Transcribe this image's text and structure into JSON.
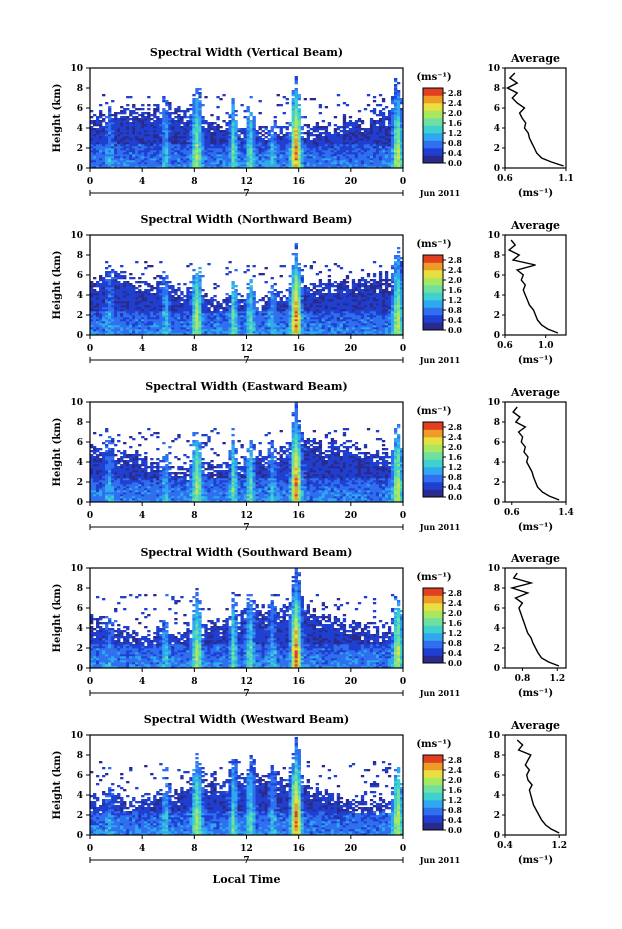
{
  "colors": {
    "background": "#ffffff",
    "colormap": [
      "#2a2a8c",
      "#1f3fd0",
      "#2f6ff0",
      "#2fa8f0",
      "#3fd0d0",
      "#6fe0a0",
      "#a8e860",
      "#e8e040",
      "#f09a28",
      "#e04020"
    ]
  },
  "chart_data": [
    {
      "type": "heatmap",
      "title": "Spectral Width (Vertical Beam)",
      "ylabel": "Height (km)",
      "xlabel": "",
      "ylim": [
        0,
        10
      ],
      "yticks": [
        "0",
        "2",
        "4",
        "6",
        "8",
        "10"
      ],
      "xlim": [
        0,
        24
      ],
      "xticks": [
        "0",
        "4",
        "8",
        "12",
        "16",
        "20",
        "0"
      ],
      "date_marker": "7",
      "date_label": "Jun 2011",
      "colorbar": {
        "unit": "(ms⁻¹)",
        "ticks": [
          "0.0",
          "0.4",
          "0.8",
          "1.2",
          "1.6",
          "2.0",
          "2.4",
          "2.8"
        ],
        "range": [
          0,
          3.0
        ]
      },
      "profile": {
        "title": "Average",
        "xticks": [
          "0.6",
          "1.1"
        ],
        "xlim": [
          0.6,
          1.1
        ],
        "xlabel": "(ms⁻¹)",
        "heights": [
          0.2,
          0.6,
          1.0,
          1.5,
          2.0,
          2.5,
          3.0,
          3.5,
          4.0,
          4.5,
          5.0,
          5.5,
          6.0,
          6.5,
          7.0,
          7.5,
          8.0,
          8.5,
          9.0,
          9.5
        ],
        "values": [
          1.08,
          0.98,
          0.9,
          0.86,
          0.84,
          0.82,
          0.8,
          0.79,
          0.76,
          0.77,
          0.74,
          0.72,
          0.76,
          0.7,
          0.66,
          0.7,
          0.62,
          0.7,
          0.64,
          0.68
        ]
      }
    },
    {
      "type": "heatmap",
      "title": "Spectral Width (Northward Beam)",
      "ylabel": "Height (km)",
      "xlabel": "",
      "ylim": [
        0,
        10
      ],
      "yticks": [
        "0",
        "2",
        "4",
        "6",
        "8",
        "10"
      ],
      "xlim": [
        0,
        24
      ],
      "xticks": [
        "0",
        "4",
        "8",
        "12",
        "16",
        "20",
        "0"
      ],
      "date_marker": "7",
      "date_label": "Jun 2011",
      "colorbar": {
        "unit": "(ms⁻¹)",
        "ticks": [
          "0.0",
          "0.4",
          "0.8",
          "1.2",
          "1.6",
          "2.0",
          "2.4",
          "2.8"
        ],
        "range": [
          0,
          3.0
        ]
      },
      "profile": {
        "title": "Average",
        "xticks": [
          "0.6",
          "1.0"
        ],
        "xlim": [
          0.6,
          1.2
        ],
        "xlabel": "(ms⁻¹)",
        "heights": [
          0.2,
          0.6,
          1.0,
          1.5,
          2.0,
          2.5,
          3.0,
          3.5,
          4.0,
          4.5,
          5.0,
          5.5,
          6.0,
          6.5,
          7.0,
          7.5,
          8.0,
          8.5,
          9.0,
          9.5
        ],
        "values": [
          1.12,
          1.02,
          0.96,
          0.92,
          0.9,
          0.88,
          0.84,
          0.82,
          0.8,
          0.78,
          0.8,
          0.76,
          0.78,
          0.72,
          0.9,
          0.68,
          0.74,
          0.64,
          0.7,
          0.66
        ]
      }
    },
    {
      "type": "heatmap",
      "title": "Spectral Width (Eastward Beam)",
      "ylabel": "Height (km)",
      "xlabel": "",
      "ylim": [
        0,
        10
      ],
      "yticks": [
        "0",
        "2",
        "4",
        "6",
        "8",
        "10"
      ],
      "xlim": [
        0,
        24
      ],
      "xticks": [
        "0",
        "4",
        "8",
        "12",
        "16",
        "20",
        "0"
      ],
      "date_marker": "7",
      "date_label": "Jun 2011",
      "colorbar": {
        "unit": "(ms⁻¹)",
        "ticks": [
          "0.0",
          "0.4",
          "0.8",
          "1.2",
          "1.6",
          "2.0",
          "2.4",
          "2.8"
        ],
        "range": [
          0,
          3.0
        ]
      },
      "profile": {
        "title": "Average",
        "xticks": [
          "0.6",
          "1.4"
        ],
        "xlim": [
          0.5,
          1.4
        ],
        "xlabel": "(ms⁻¹)",
        "heights": [
          0.2,
          0.6,
          1.0,
          1.5,
          2.0,
          2.5,
          3.0,
          3.5,
          4.0,
          4.5,
          5.0,
          5.5,
          6.0,
          6.5,
          7.0,
          7.5,
          8.0,
          8.5,
          9.0,
          9.5
        ],
        "values": [
          1.3,
          1.15,
          1.05,
          0.98,
          0.95,
          0.92,
          0.9,
          0.86,
          0.82,
          0.84,
          0.78,
          0.8,
          0.74,
          0.76,
          0.7,
          0.8,
          0.66,
          0.72,
          0.62,
          0.68
        ]
      }
    },
    {
      "type": "heatmap",
      "title": "Spectral Width (Southward Beam)",
      "ylabel": "Height (km)",
      "xlabel": "",
      "ylim": [
        0,
        10
      ],
      "yticks": [
        "0",
        "2",
        "4",
        "6",
        "8",
        "10"
      ],
      "xlim": [
        0,
        24
      ],
      "xticks": [
        "0",
        "4",
        "8",
        "12",
        "16",
        "20",
        "0"
      ],
      "date_marker": "7",
      "date_label": "Jun 2011",
      "colorbar": {
        "unit": "(ms⁻¹)",
        "ticks": [
          "0.0",
          "0.4",
          "0.8",
          "1.2",
          "1.6",
          "2.0",
          "2.4",
          "2.8"
        ],
        "range": [
          0,
          3.0
        ]
      },
      "profile": {
        "title": "Average",
        "xticks": [
          "0.8",
          "1.2"
        ],
        "xlim": [
          0.6,
          1.3
        ],
        "xlabel": "(ms⁻¹)",
        "heights": [
          0.2,
          0.6,
          1.0,
          1.5,
          2.0,
          2.5,
          3.0,
          3.5,
          4.0,
          4.5,
          5.0,
          5.5,
          6.0,
          6.5,
          7.0,
          7.5,
          8.0,
          8.5,
          9.0,
          9.5
        ],
        "values": [
          1.22,
          1.1,
          1.02,
          0.98,
          0.95,
          0.92,
          0.9,
          0.86,
          0.84,
          0.82,
          0.8,
          0.78,
          0.76,
          0.8,
          0.72,
          0.86,
          0.68,
          0.9,
          0.7,
          0.74
        ]
      }
    },
    {
      "type": "heatmap",
      "title": "Spectral Width (Westward Beam)",
      "ylabel": "Height (km)",
      "xlabel": "Local Time",
      "ylim": [
        0,
        10
      ],
      "yticks": [
        "0",
        "2",
        "4",
        "6",
        "8",
        "10"
      ],
      "xlim": [
        0,
        24
      ],
      "xticks": [
        "0",
        "4",
        "8",
        "12",
        "16",
        "20",
        "0"
      ],
      "date_marker": "7",
      "date_label": "Jun 2011",
      "colorbar": {
        "unit": "(ms⁻¹)",
        "ticks": [
          "0.0",
          "0.4",
          "0.8",
          "1.2",
          "1.6",
          "2.0",
          "2.4",
          "2.8"
        ],
        "range": [
          0,
          3.0
        ]
      },
      "profile": {
        "title": "Average",
        "xticks": [
          "0.4",
          "1.2"
        ],
        "xlim": [
          0.4,
          1.3
        ],
        "xlabel": "(ms⁻¹)",
        "heights": [
          0.2,
          0.6,
          1.0,
          1.5,
          2.0,
          2.5,
          3.0,
          3.5,
          4.0,
          4.5,
          5.0,
          5.5,
          6.0,
          6.5,
          7.0,
          7.5,
          8.0,
          8.5,
          9.0,
          9.5
        ],
        "values": [
          1.2,
          1.08,
          1.0,
          0.94,
          0.9,
          0.86,
          0.82,
          0.8,
          0.78,
          0.76,
          0.8,
          0.74,
          0.72,
          0.76,
          0.7,
          0.74,
          0.78,
          0.6,
          0.66,
          0.58
        ]
      }
    }
  ]
}
